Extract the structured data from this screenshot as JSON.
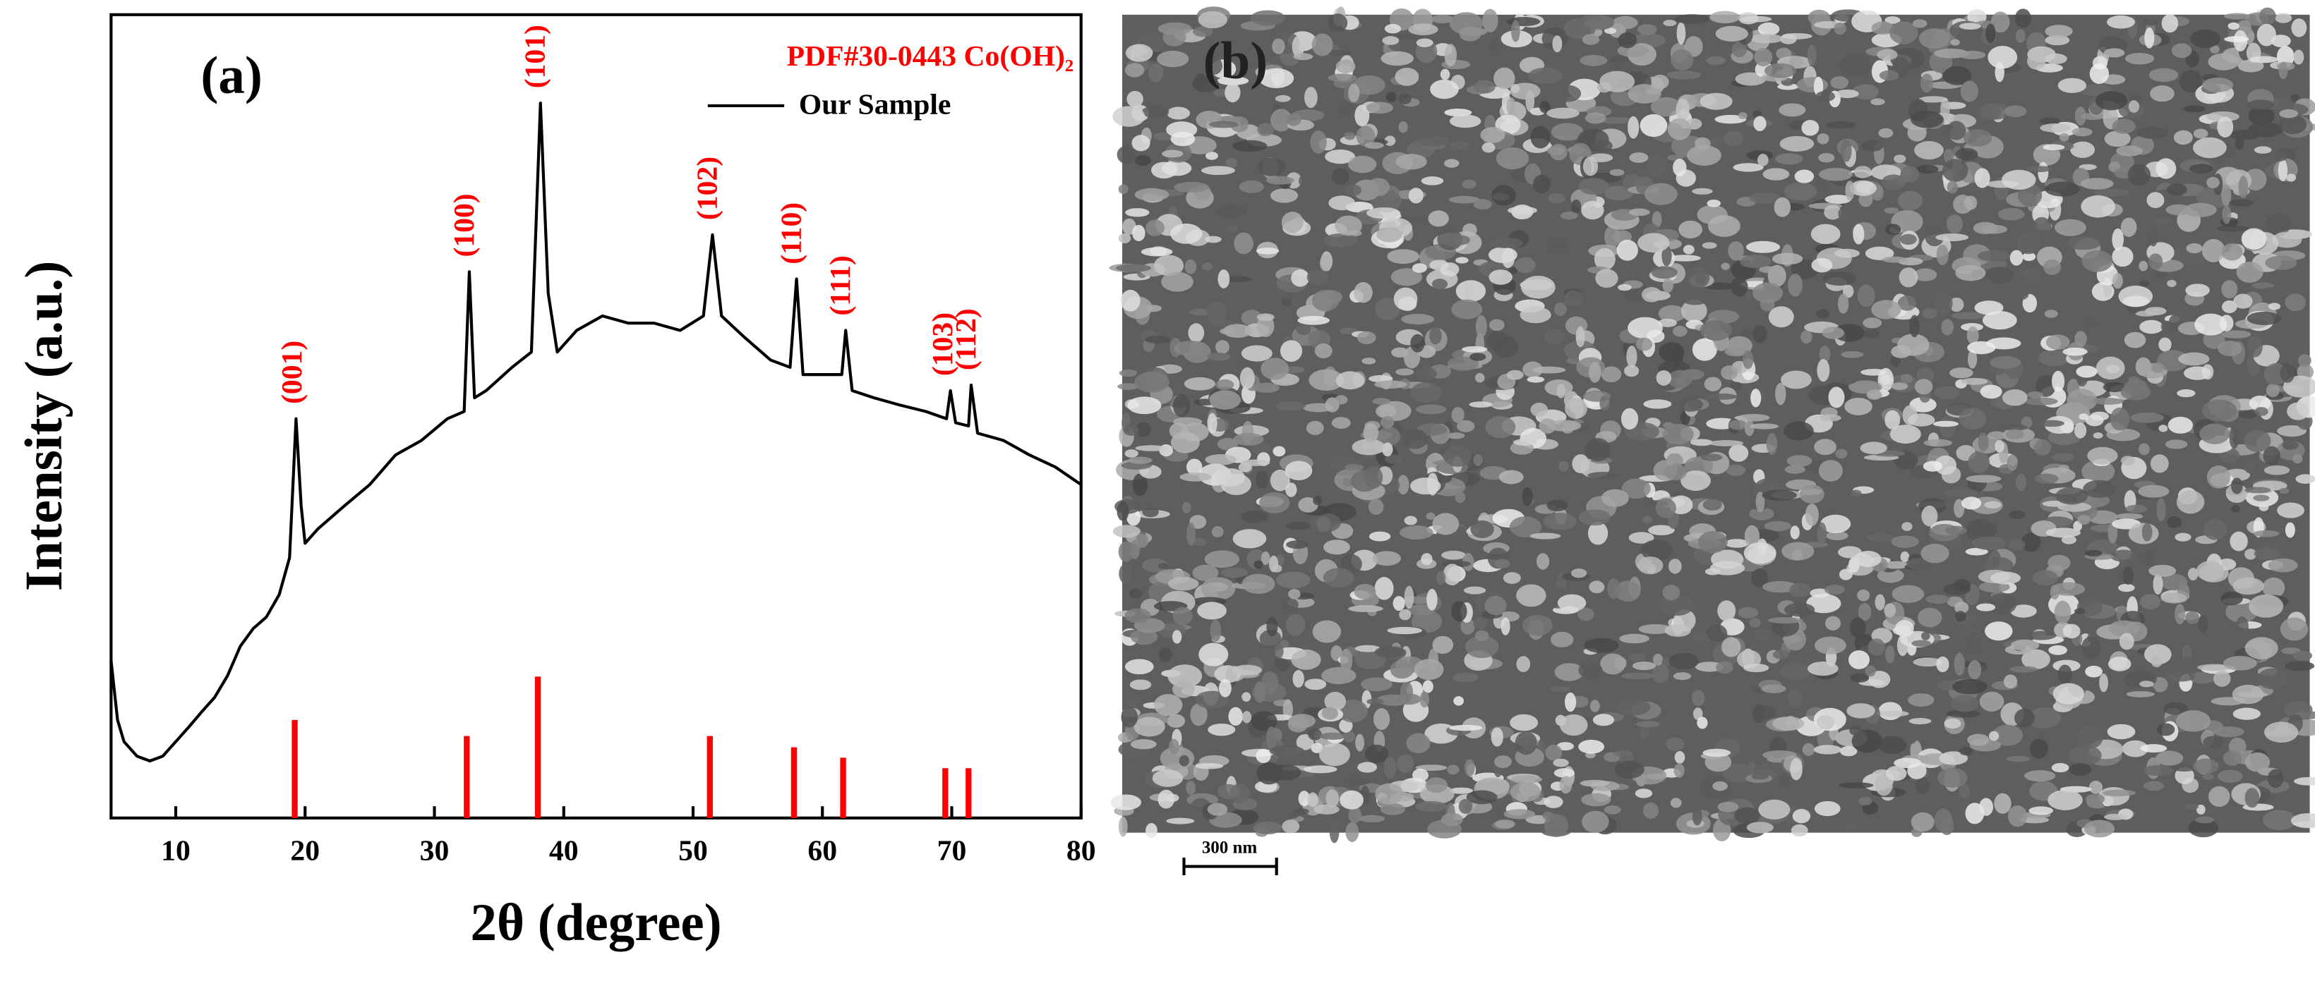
{
  "chart_data": {
    "type": "line",
    "panel_label": "(a)",
    "x_label": "2θ (degree)",
    "y_label": "Intensity (a.u.)",
    "x": [
      5.0,
      5.5,
      6.0,
      7.0,
      8.0,
      9.0,
      10,
      11,
      12,
      13,
      14,
      15,
      16,
      17,
      18,
      18.8,
      19.3,
      19.7,
      20.0,
      21,
      23,
      25,
      27,
      29,
      31,
      32.3,
      32.7,
      33.1,
      34,
      36,
      37.5,
      38.2,
      38.8,
      39.5,
      41,
      43,
      45,
      47,
      49,
      50.8,
      51.5,
      52.2,
      54,
      56,
      57.5,
      58.0,
      58.5,
      60,
      61.5,
      61.8,
      62.3,
      64,
      66,
      68,
      69.6,
      69.9,
      70.3,
      71.3,
      71.5,
      72,
      74,
      76,
      78,
      80
    ],
    "series": [
      {
        "name": "Our Sample",
        "color": "#000000",
        "values": [
          19.6,
          12.2,
          9.5,
          7.7,
          7.1,
          7.7,
          9.5,
          11.3,
          13.2,
          15.0,
          17.7,
          21.4,
          23.6,
          25.0,
          27.8,
          32.4,
          49.7,
          38.8,
          34.2,
          36.0,
          38.8,
          41.5,
          45.2,
          47.0,
          49.7,
          50.6,
          68.0,
          52.3,
          53.2,
          56.1,
          58.0,
          89.0,
          65.3,
          58.0,
          60.7,
          62.5,
          61.6,
          61.6,
          60.7,
          62.5,
          72.6,
          62.5,
          59.8,
          57.0,
          56.1,
          67.1,
          55.2,
          55.2,
          55.2,
          60.7,
          53.2,
          52.3,
          51.4,
          50.6,
          49.7,
          53.2,
          49.2,
          48.8,
          53.9,
          47.9,
          47.0,
          45.2,
          43.7,
          41.5
        ]
      }
    ],
    "reference": {
      "name": "PDF#30-0443  Co(OH)₂",
      "color": "#ff0000",
      "x": [
        19.2,
        32.5,
        38.0,
        51.3,
        57.8,
        61.6,
        69.5,
        71.3
      ],
      "values": [
        12.2,
        10.2,
        17.6,
        10.2,
        8.8,
        7.5,
        6.2,
        6.2
      ],
      "labels": [
        "(001)",
        "(100)",
        "(101)",
        "(102)",
        "(110)",
        "(111)",
        "(103)",
        "(112)"
      ]
    },
    "xlim": [
      5,
      80
    ],
    "ylim": [
      0,
      100
    ],
    "xticks": [
      10,
      20,
      30,
      40,
      50,
      60,
      70,
      80
    ],
    "legend": "upper right"
  },
  "image": {
    "panel_label": "(b)",
    "scale_bar": "300 nm"
  }
}
